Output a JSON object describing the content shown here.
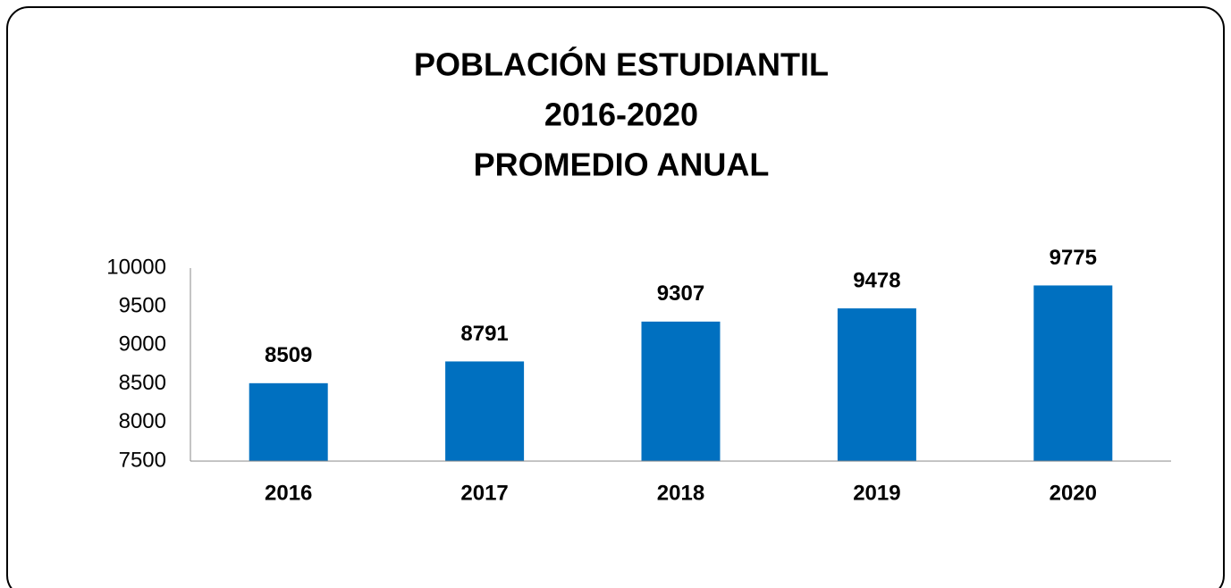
{
  "chart_data": {
    "type": "bar",
    "title_lines": [
      "POBLACIÓN ESTUDIANTIL",
      "2016-2020",
      "PROMEDIO ANUAL"
    ],
    "categories": [
      "2016",
      "2017",
      "2018",
      "2019",
      "2020"
    ],
    "values": [
      8509,
      8791,
      9307,
      9478,
      9775
    ],
    "color": "#0070c0",
    "ylim": [
      7500,
      10000
    ],
    "yticks": [
      7500,
      8000,
      8500,
      9000,
      9500,
      10000
    ],
    "grid": false
  }
}
